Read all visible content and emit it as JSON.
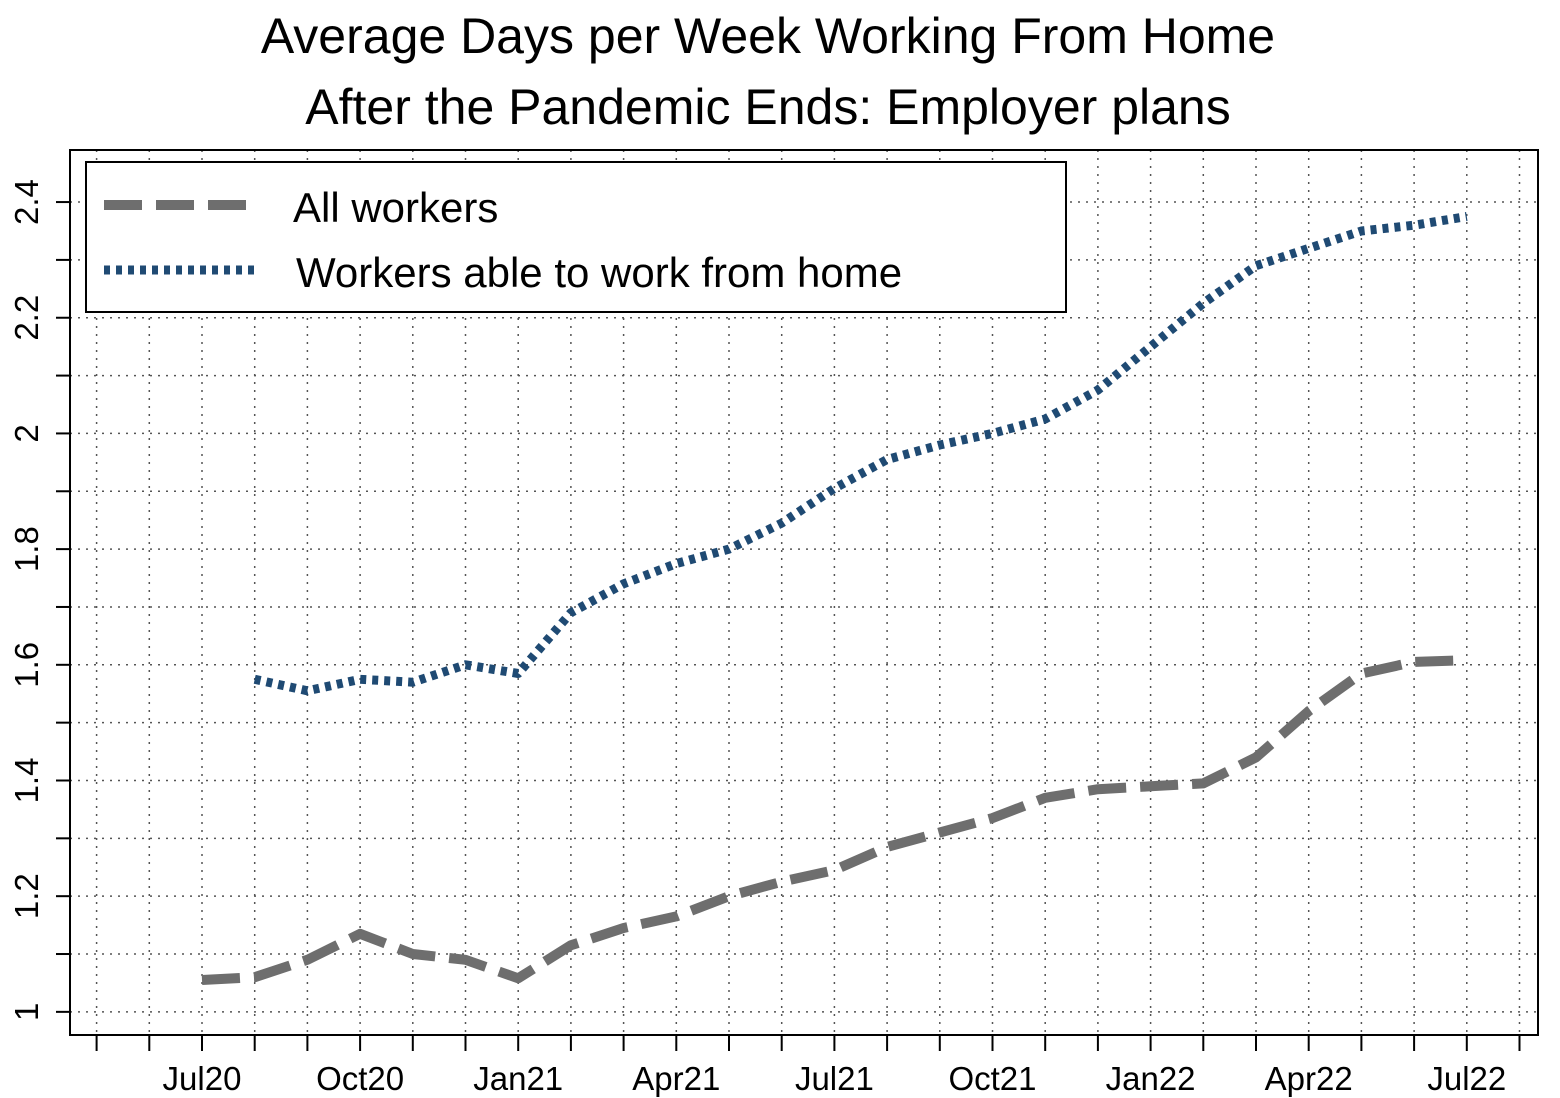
{
  "chart_data": {
    "type": "line",
    "title_lines": [
      "Average Days per Week Working From Home",
      "After the Pandemic Ends: Employer plans"
    ],
    "xlabel": "",
    "ylabel": "",
    "x_tick_labels": [
      "Jul20",
      "Oct20",
      "Jan21",
      "Apr21",
      "Jul21",
      "Oct21",
      "Jan22",
      "Apr22",
      "Jul22"
    ],
    "x": [
      "May20",
      "Jun20",
      "Jul20",
      "Aug20",
      "Sep20",
      "Oct20",
      "Nov20",
      "Dec20",
      "Jan21",
      "Feb21",
      "Mar21",
      "Apr21",
      "May21",
      "Jun21",
      "Jul21",
      "Aug21",
      "Sep21",
      "Oct21",
      "Nov21",
      "Dec21",
      "Jan22",
      "Feb22",
      "Mar22",
      "Apr22",
      "May22",
      "Jun22",
      "Jul22",
      "Aug22"
    ],
    "y_ticks": [
      1,
      1.2,
      1.4,
      1.6,
      1.8,
      2,
      2.2,
      2.4
    ],
    "ylim": [
      0.96,
      2.49
    ],
    "grid": true,
    "legend_position": "top-left",
    "series": [
      {
        "name": "All workers",
        "style": "dashed",
        "color": "#6e6e6e",
        "x": [
          "Jul20",
          "Aug20",
          "Sep20",
          "Oct20",
          "Nov20",
          "Dec20",
          "Jan21",
          "Feb21",
          "Mar21",
          "Apr21",
          "May21",
          "Jun21",
          "Jul21",
          "Aug21",
          "Sep21",
          "Oct21",
          "Nov21",
          "Dec21",
          "Jan22",
          "Feb22",
          "Mar22",
          "Apr22",
          "May22",
          "Jun22",
          "Jul22"
        ],
        "values": [
          1.055,
          1.06,
          1.09,
          1.135,
          1.1,
          1.09,
          1.058,
          1.115,
          1.145,
          1.165,
          1.2,
          1.225,
          1.245,
          1.285,
          1.31,
          1.335,
          1.37,
          1.385,
          1.39,
          1.395,
          1.44,
          1.52,
          1.585,
          1.605,
          1.608
        ]
      },
      {
        "name": "Workers able to work from home",
        "style": "dotted",
        "color": "#1f4a73",
        "x": [
          "Aug20",
          "Sep20",
          "Oct20",
          "Nov20",
          "Dec20",
          "Jan21",
          "Feb21",
          "Mar21",
          "Apr21",
          "May21",
          "Jun21",
          "Jul21",
          "Aug21",
          "Sep21",
          "Oct21",
          "Nov21",
          "Dec21",
          "Jan22",
          "Feb22",
          "Mar22",
          "Apr22",
          "May22",
          "Jun22",
          "Jul22"
        ],
        "values": [
          1.575,
          1.555,
          1.575,
          1.57,
          1.6,
          1.585,
          1.69,
          1.74,
          1.775,
          1.8,
          1.845,
          1.905,
          1.955,
          1.98,
          2.0,
          2.025,
          2.075,
          2.15,
          2.225,
          2.29,
          2.32,
          2.35,
          2.36,
          2.375
        ]
      }
    ]
  }
}
